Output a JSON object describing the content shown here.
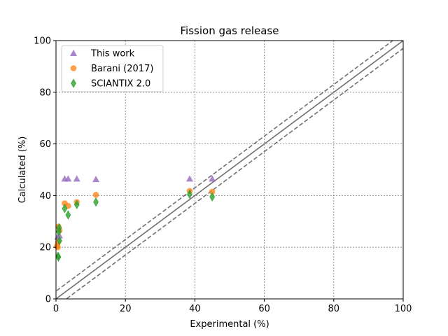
{
  "chart_data": {
    "type": "scatter",
    "title": "Fission gas release",
    "xlabel": "Experimental (%)",
    "ylabel": "Calculated (%)",
    "xlim": [
      0,
      100
    ],
    "ylim": [
      0,
      100
    ],
    "xticks": [
      "0",
      "20",
      "40",
      "60",
      "80",
      "100"
    ],
    "yticks": [
      "0",
      "20",
      "40",
      "60",
      "80",
      "100"
    ],
    "grid": true,
    "grid_style": "dotted",
    "legend_position": "upper-left",
    "reference_lines": [
      {
        "style": "solid",
        "color": "#707070",
        "offset": 0
      },
      {
        "style": "dashed",
        "color": "#707070",
        "offset": 3
      },
      {
        "style": "dashed",
        "color": "#707070",
        "offset": -3
      }
    ],
    "series": [
      {
        "name": "This work",
        "marker": "triangle",
        "color": "#9467bd",
        "points": [
          [
            0.5,
            24.0
          ],
          [
            1.0,
            24.5
          ],
          [
            2.5,
            46.5
          ],
          [
            3.5,
            46.5
          ],
          [
            6.0,
            46.5
          ],
          [
            11.5,
            46.3
          ],
          [
            38.5,
            46.5
          ],
          [
            45.0,
            46.5
          ]
        ]
      },
      {
        "name": "Barani (2017)",
        "marker": "circle",
        "color": "#ff7f0e",
        "points": [
          [
            0.3,
            20.5
          ],
          [
            0.5,
            20.0
          ],
          [
            0.6,
            22.0
          ],
          [
            0.7,
            28.0
          ],
          [
            1.0,
            26.5
          ],
          [
            2.5,
            37.0
          ],
          [
            3.5,
            36.0
          ],
          [
            6.0,
            37.5
          ],
          [
            11.5,
            40.3
          ],
          [
            38.5,
            41.8
          ],
          [
            45.0,
            41.5
          ]
        ]
      },
      {
        "name": "SCIANTIX 2.0",
        "marker": "thin_diamond",
        "color": "#2ca02c",
        "points": [
          [
            0.6,
            16.5
          ],
          [
            0.7,
            16.2
          ],
          [
            0.8,
            26.0
          ],
          [
            0.9,
            27.5
          ],
          [
            1.0,
            22.5
          ],
          [
            2.5,
            35.0
          ],
          [
            3.5,
            32.5
          ],
          [
            6.0,
            36.5
          ],
          [
            11.5,
            37.5
          ],
          [
            38.5,
            40.5
          ],
          [
            45.0,
            39.5
          ]
        ]
      }
    ]
  }
}
